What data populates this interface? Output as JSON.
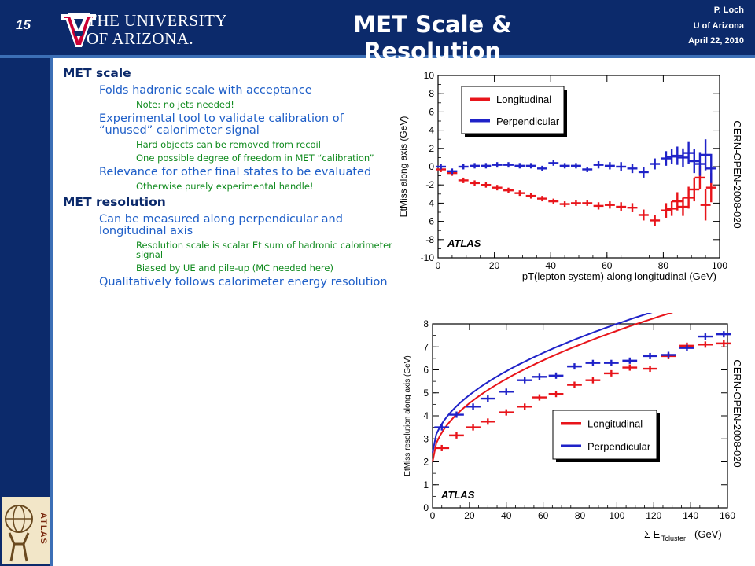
{
  "header": {
    "slide_number": "15",
    "university_line1": "THE UNIVERSITY",
    "university_line2": "OF ARIZONA.",
    "title": "MET Scale & Resolution",
    "author": "P. Loch",
    "institution": "U of Arizona",
    "date": "April 22, 2010"
  },
  "sidebar": {
    "atlas_logo_text": "ATLAS"
  },
  "bullets": [
    {
      "level": 1,
      "text": "MET scale"
    },
    {
      "level": 2,
      "text": "Folds hadronic scale with acceptance"
    },
    {
      "level": 3,
      "text": "Note: no jets needed!"
    },
    {
      "level": 2,
      "text": "Experimental tool to validate calibration of “unused” calorimeter signal"
    },
    {
      "level": 3,
      "text": "Hard objects can be removed from recoil"
    },
    {
      "level": 3,
      "text": "One possible degree of freedom in MET “calibration”"
    },
    {
      "level": 2,
      "text": "Relevance for other final states to be evaluated"
    },
    {
      "level": 3,
      "text": "Otherwise purely experimental handle!"
    },
    {
      "level": 1,
      "text": "MET resolution"
    },
    {
      "level": 2,
      "text": "Can be measured along perpendicular and longitudinal axis"
    },
    {
      "level": 3,
      "text": "Resolution scale is scalar Et sum of hadronic calorimeter signal"
    },
    {
      "level": 3,
      "text": "Biased by UE and pile-up (MC needed here)"
    },
    {
      "level": 2,
      "text": "Qualitatively follows calorimeter energy resolution"
    }
  ],
  "colors": {
    "longitudinal": "#e8141a",
    "perpendicular": "#1f22c8",
    "header": "#0c2a6b"
  },
  "chart_data": [
    {
      "type": "scatter",
      "xlabel": "pT(lepton system) along longitudinal (GeV)",
      "ylabel": "EtMiss along axis (GeV)",
      "xlim": [
        0,
        100
      ],
      "ylim": [
        -10,
        10
      ],
      "xticks": [
        "0",
        "20",
        "40",
        "60",
        "80",
        "100"
      ],
      "yticks": [
        "-10",
        "-8",
        "-6",
        "-4",
        "-2",
        "0",
        "2",
        "4",
        "6",
        "8",
        "10"
      ],
      "legend_position": "top-left",
      "annotation": "ATLAS",
      "side_label": "CERN-OPEN-2008-020",
      "series": [
        {
          "name": "Longitudinal",
          "color": "#e8141a",
          "x": [
            1,
            5,
            9,
            13,
            17,
            21,
            25,
            29,
            33,
            37,
            41,
            45,
            49,
            53,
            57,
            61,
            65,
            69,
            73,
            77,
            81,
            83,
            85,
            87,
            89,
            91,
            93,
            95,
            97
          ],
          "y": [
            -0.3,
            -0.7,
            -1.5,
            -1.8,
            -2.0,
            -2.3,
            -2.6,
            -2.9,
            -3.2,
            -3.5,
            -3.8,
            -4.1,
            -4.0,
            -4.0,
            -4.3,
            -4.2,
            -4.4,
            -4.5,
            -5.3,
            -5.9,
            -4.8,
            -4.6,
            -3.8,
            -4.4,
            -3.4,
            -2.5,
            -1.2,
            -4.2,
            -2.3
          ],
          "yerr": [
            0.3,
            0.3,
            0.3,
            0.3,
            0.3,
            0.3,
            0.3,
            0.3,
            0.3,
            0.3,
            0.3,
            0.3,
            0.3,
            0.3,
            0.4,
            0.4,
            0.5,
            0.5,
            0.6,
            0.6,
            0.8,
            0.8,
            1.0,
            1.0,
            1.2,
            1.3,
            1.3,
            1.7,
            1.6
          ]
        },
        {
          "name": "Perpendicular",
          "color": "#1f22c8",
          "x": [
            1,
            5,
            9,
            13,
            17,
            21,
            25,
            29,
            33,
            37,
            41,
            45,
            49,
            53,
            57,
            61,
            65,
            69,
            73,
            77,
            81,
            83,
            85,
            87,
            89,
            91,
            93,
            95,
            97
          ],
          "y": [
            0.0,
            -0.5,
            0.0,
            0.1,
            0.1,
            0.2,
            0.2,
            0.1,
            0.1,
            -0.2,
            0.4,
            0.1,
            0.1,
            -0.3,
            0.2,
            0.1,
            0.0,
            -0.2,
            -0.6,
            0.3,
            0.9,
            1.1,
            1.2,
            1.0,
            1.5,
            0.6,
            0.3,
            1.3,
            -0.2
          ],
          "yerr": [
            0.3,
            0.3,
            0.3,
            0.3,
            0.3,
            0.3,
            0.3,
            0.3,
            0.3,
            0.3,
            0.3,
            0.3,
            0.3,
            0.3,
            0.4,
            0.4,
            0.5,
            0.5,
            0.6,
            0.6,
            0.8,
            0.8,
            1.0,
            1.0,
            1.2,
            1.3,
            1.3,
            1.7,
            1.6
          ]
        }
      ]
    },
    {
      "type": "scatter",
      "xlabel": "Σ E",
      "xlabel_sub": "Tcluster",
      "xlabel_unit": "(GeV)",
      "ylabel": "EtMiss resolution along axis (GeV)",
      "xlim": [
        0,
        160
      ],
      "ylim": [
        0,
        8
      ],
      "xticks": [
        "0",
        "20",
        "40",
        "60",
        "80",
        "100",
        "120",
        "140",
        "160"
      ],
      "yticks": [
        "0",
        "1",
        "2",
        "3",
        "4",
        "5",
        "6",
        "7",
        "8"
      ],
      "legend_position": "center-right",
      "annotation": "ATLAS",
      "side_label": "CERN-OPEN-2008-020",
      "series": [
        {
          "name": "Longitudinal",
          "color": "#e8141a",
          "x": [
            5,
            13,
            22,
            30,
            40,
            50,
            58,
            67,
            77,
            87,
            97,
            107,
            118,
            128,
            138,
            148,
            158
          ],
          "y": [
            2.6,
            3.15,
            3.5,
            3.75,
            4.15,
            4.4,
            4.8,
            4.95,
            5.35,
            5.55,
            5.85,
            6.1,
            6.05,
            6.6,
            7.05,
            7.1,
            7.15
          ],
          "xerr": 4
        },
        {
          "name": "Perpendicular",
          "color": "#1f22c8",
          "x": [
            5,
            13,
            22,
            30,
            40,
            50,
            58,
            67,
            77,
            87,
            97,
            107,
            118,
            128,
            138,
            148,
            158
          ],
          "y": [
            3.5,
            4.05,
            4.4,
            4.75,
            5.05,
            5.55,
            5.7,
            5.75,
            6.15,
            6.3,
            6.3,
            6.4,
            6.6,
            6.65,
            6.95,
            7.45,
            7.55
          ],
          "xerr": 4
        }
      ],
      "fits": [
        {
          "name": "Longitudinal",
          "color": "#e8141a",
          "a": 0.57,
          "b": 2.0
        },
        {
          "name": "Perpendicular",
          "color": "#1f22c8",
          "a": 0.56,
          "b": 2.4
        }
      ]
    }
  ]
}
